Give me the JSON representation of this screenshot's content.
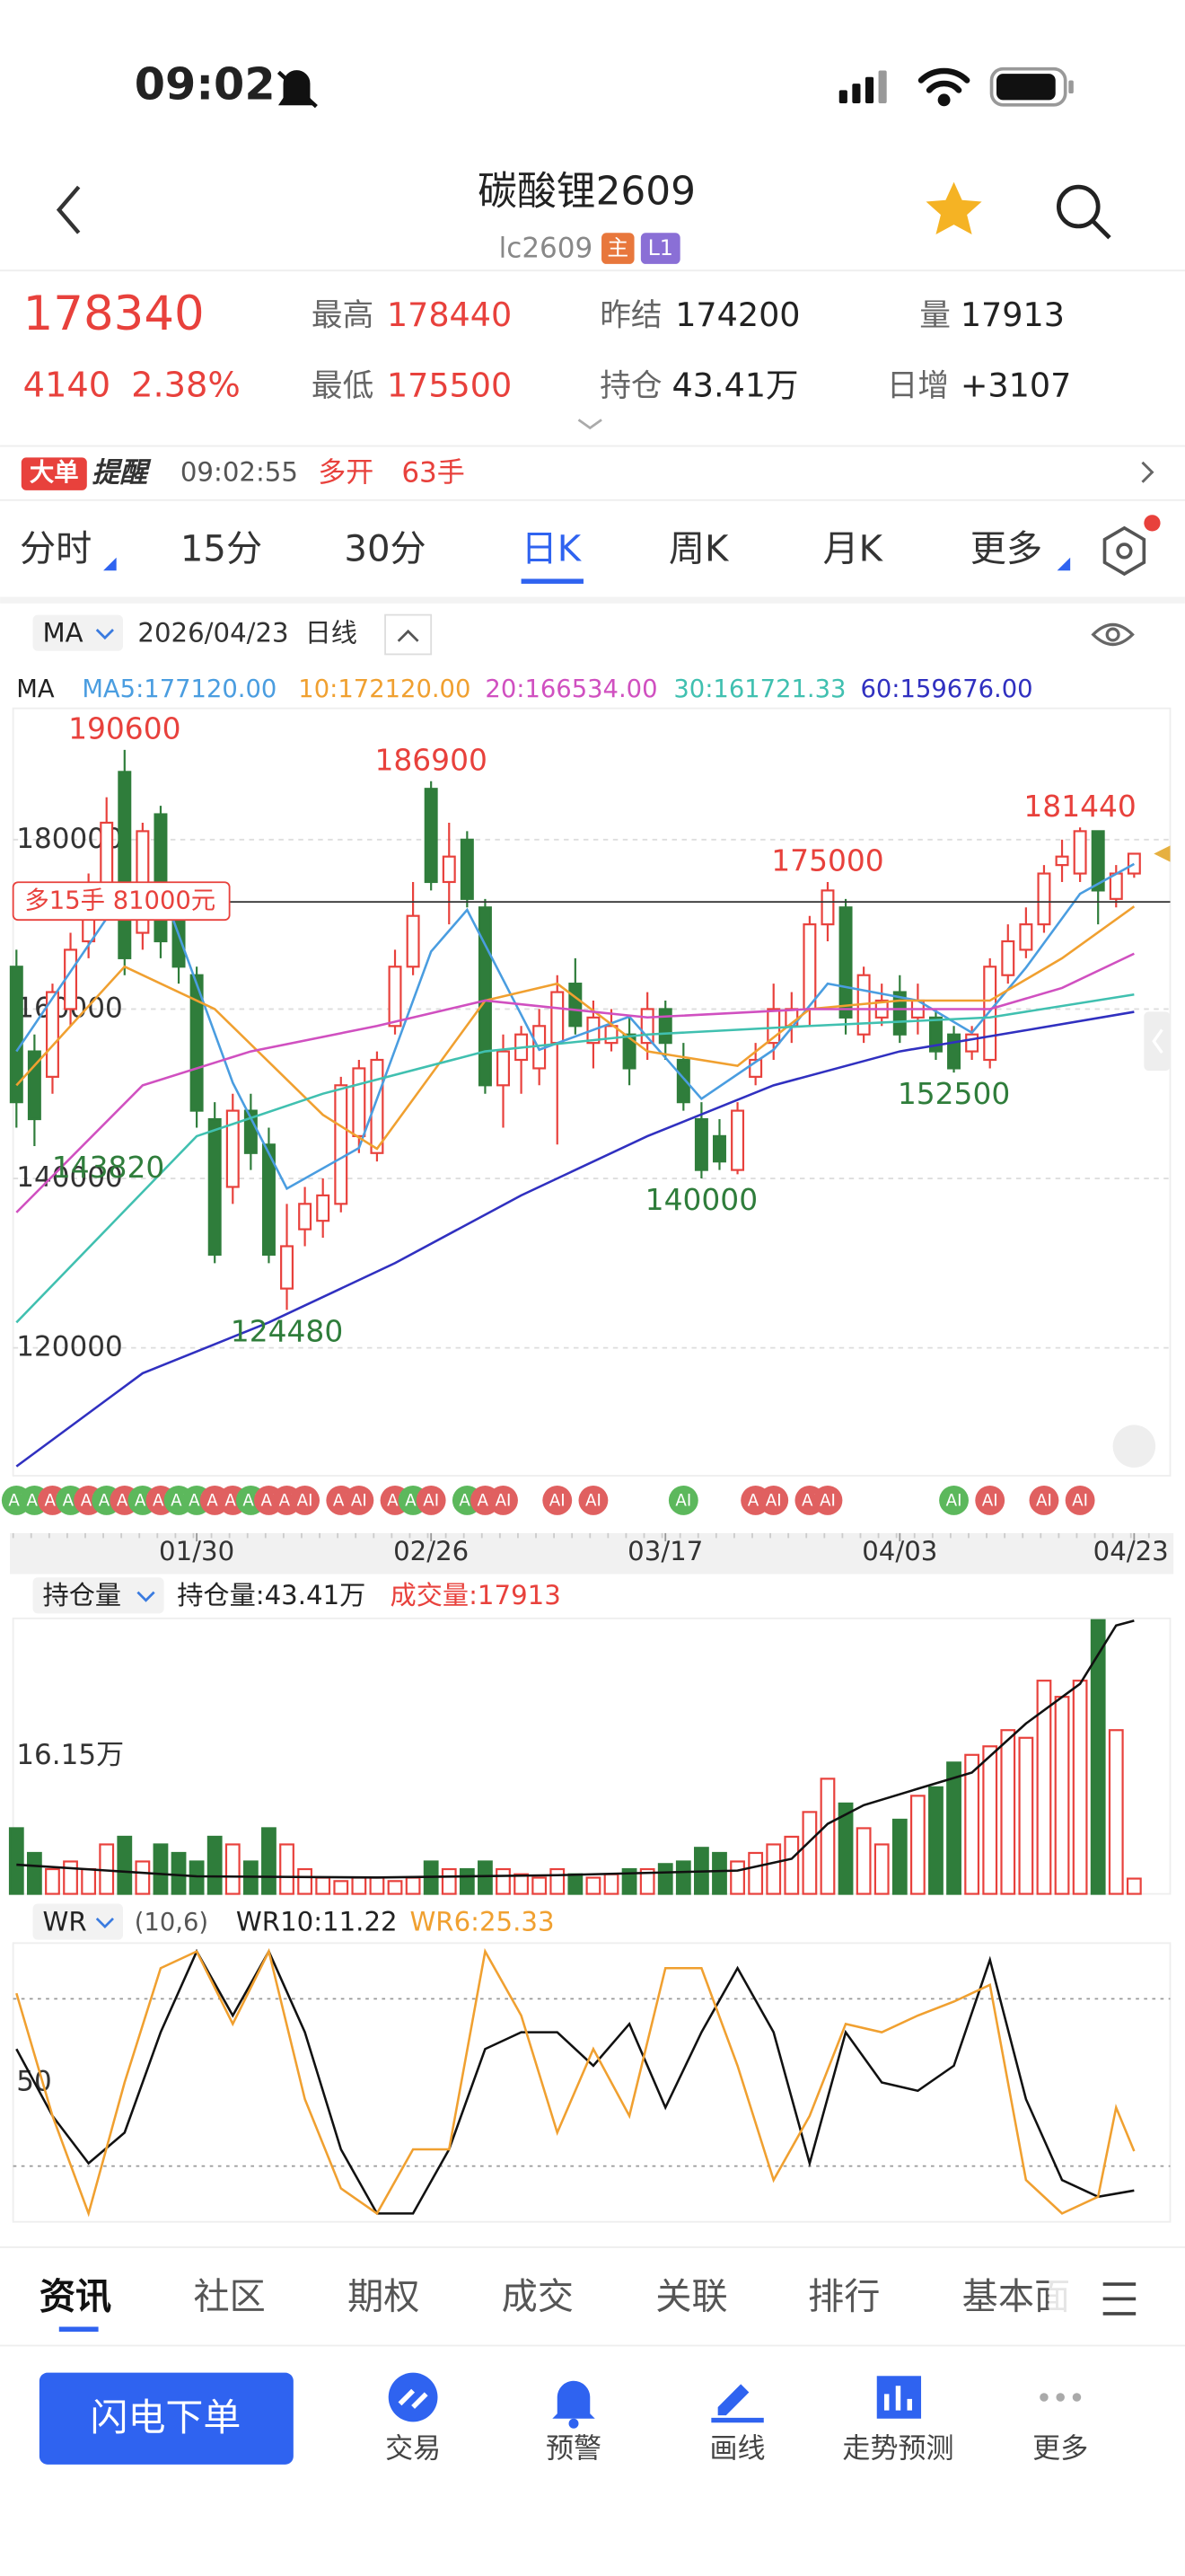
{
  "status_bar": {
    "time": "09:02"
  },
  "header": {
    "title": "碳酸锂2609",
    "code": "lc2609",
    "badges": [
      "主",
      "L1"
    ]
  },
  "quote": {
    "change": 4140,
    "change_pct": "2.38%",
    "high_label": "最高",
    "low_label": "最低",
    "prev_settle_label": "昨结",
    "prev_settle": 174200,
    "oi_label": "持仓",
    "oi": "43.41万",
    "volume_label": "量",
    "volume": 17913,
    "daily_change_label": "日增",
    "daily_change": "+3107"
  },
  "alert": {
    "tag": "大单",
    "title": "提醒",
    "time": "09:02:55",
    "action": "多开",
    "size": "63手"
  },
  "tabs": {
    "items": [
      "分时",
      "15分",
      "30分",
      "日K",
      "周K",
      "月K",
      "更多"
    ],
    "active": 3
  },
  "chart_header": {
    "indicator": "MA",
    "date": "2026/04/23",
    "period": "日线"
  },
  "ma_title": "MA",
  "chart_data": [
    {
      "type": "candlestick",
      "up_color": "#e8413c",
      "down_color": "#2f7d3b",
      "ylim": [
        104900,
        195500
      ],
      "yticks": [
        120000,
        140000,
        160000,
        180000
      ],
      "grid": true,
      "candles": {
        "open": [
          165000,
          155000,
          152000,
          160000,
          168000,
          174000,
          188000,
          169000,
          183000,
          172000,
          164000,
          147000,
          139000,
          148000,
          144000,
          127000,
          134000,
          135000,
          137000,
          145000,
          143000,
          158000,
          165000,
          186000,
          175000,
          180000,
          172000,
          151000,
          154000,
          153000,
          156000,
          163000,
          156000,
          156000,
          157000,
          156000,
          160000,
          154000,
          147000,
          145000,
          141000,
          152000,
          156000,
          158000,
          160000,
          170000,
          172000,
          157000,
          159000,
          162000,
          159000,
          159000,
          157000,
          155000,
          154000,
          164000,
          167000,
          170000,
          177000,
          176000,
          181000,
          173000,
          176000
        ],
        "high": [
          167000,
          157000,
          163000,
          169000,
          176000,
          185000,
          190600,
          182000,
          184000,
          173000,
          165000,
          149000,
          150000,
          150000,
          146000,
          137000,
          139000,
          140000,
          152000,
          154000,
          155000,
          167000,
          175000,
          186900,
          182000,
          181000,
          173000,
          157000,
          158000,
          160000,
          164000,
          166000,
          161000,
          160000,
          159000,
          162000,
          161000,
          156000,
          149000,
          147000,
          149000,
          156000,
          163000,
          162000,
          171000,
          175000,
          173000,
          165000,
          163000,
          164000,
          163000,
          160000,
          158000,
          158000,
          166000,
          170000,
          172000,
          177000,
          180000,
          181440,
          181000,
          177000,
          178440
        ],
        "low": [
          146000,
          143820,
          150000,
          158000,
          166000,
          172000,
          164000,
          167000,
          166000,
          163000,
          146000,
          130000,
          137000,
          141000,
          130000,
          124480,
          132000,
          133000,
          136000,
          143000,
          142000,
          157000,
          164000,
          174000,
          170000,
          172000,
          150000,
          146000,
          150000,
          151000,
          144000,
          157000,
          153000,
          155000,
          151000,
          154000,
          154000,
          148000,
          140000,
          141000,
          140500,
          151000,
          154000,
          156000,
          158000,
          168000,
          157000,
          156000,
          158000,
          156000,
          157000,
          154000,
          152500,
          154000,
          153000,
          163000,
          166000,
          169000,
          175000,
          175000,
          170000,
          172000,
          175500
        ],
        "close": [
          149000,
          147000,
          162000,
          167000,
          174000,
          182000,
          166000,
          181000,
          168000,
          165000,
          148000,
          131000,
          148000,
          143000,
          131000,
          132000,
          137000,
          138000,
          151000,
          153000,
          154000,
          165000,
          171000,
          175000,
          178000,
          173000,
          151000,
          155000,
          157000,
          158000,
          162000,
          158000,
          159000,
          158000,
          153000,
          160000,
          156000,
          149000,
          141000,
          142000,
          148000,
          154000,
          160000,
          160000,
          170000,
          174000,
          159000,
          164000,
          161000,
          157000,
          161000,
          155000,
          153000,
          157000,
          165000,
          168000,
          170000,
          176000,
          178000,
          181000,
          174000,
          176000,
          178340
        ]
      },
      "marked_highs": [
        6,
        23,
        45,
        59
      ],
      "marked_lows": [
        1,
        15,
        38,
        52
      ],
      "series": [
        {
          "label": "MA5:177120.00",
          "color": "#4a9de0",
          "x": [
            0,
            5,
            8,
            12,
            15,
            19,
            23,
            25,
            29,
            34,
            38,
            42,
            45,
            50,
            53,
            56,
            59,
            62
          ],
          "values": [
            155000,
            170700,
            174600,
            151300,
            138800,
            143600,
            166800,
            171700,
            155200,
            159100,
            149400,
            155200,
            163000,
            161000,
            157200,
            164900,
            173600,
            177120
          ]
        },
        {
          "label": "10:172120.00",
          "color": "#f0a030",
          "x": [
            0,
            6,
            11,
            17,
            20,
            26,
            30,
            35,
            40,
            44,
            49,
            54,
            58,
            62
          ],
          "values": [
            151000,
            165000,
            160000,
            147500,
            143500,
            161000,
            163000,
            155000,
            153300,
            160000,
            161000,
            161000,
            166000,
            172120
          ]
        },
        {
          "label": "20:166534.00",
          "color": "#d050c0",
          "x": [
            0,
            7,
            13,
            20,
            26,
            35,
            44,
            54,
            58,
            62
          ],
          "values": [
            136000,
            151000,
            155000,
            158000,
            161000,
            159000,
            160000,
            160000,
            162500,
            166534
          ]
        },
        {
          "label": "30:161721.33",
          "color": "#40c0b0",
          "x": [
            0,
            10,
            17,
            26,
            35,
            44,
            54,
            62
          ],
          "values": [
            123000,
            145000,
            150000,
            155000,
            157000,
            158000,
            159000,
            161721.33
          ]
        },
        {
          "label": "60:159676.00",
          "color": "#3030c0",
          "x": [
            0,
            7,
            14,
            21,
            28,
            35,
            42,
            49,
            56,
            62
          ],
          "values": [
            106000,
            117000,
            123000,
            130000,
            138000,
            145000,
            151000,
            155000,
            157500,
            159676
          ]
        }
      ],
      "position_line": {
        "label": "多15手 81000元",
        "price": 172650
      },
      "ai_badges": {
        "label": "AI",
        "items": [
          {
            "index": 0,
            "color": "#5cb85c"
          },
          {
            "index": 1,
            "color": "#5cb85c"
          },
          {
            "index": 2,
            "color": "#e06060"
          },
          {
            "index": 3,
            "color": "#5cb85c"
          },
          {
            "index": 4,
            "color": "#e06060"
          },
          {
            "index": 5,
            "color": "#5cb85c"
          },
          {
            "index": 6,
            "color": "#e06060"
          },
          {
            "index": 7,
            "color": "#5cb85c"
          },
          {
            "index": 8,
            "color": "#e06060"
          },
          {
            "index": 9,
            "color": "#5cb85c"
          },
          {
            "index": 10,
            "color": "#5cb85c"
          },
          {
            "index": 11,
            "color": "#e06060"
          },
          {
            "index": 12,
            "color": "#e06060"
          },
          {
            "index": 13,
            "color": "#5cb85c"
          },
          {
            "index": 14,
            "color": "#e06060"
          },
          {
            "index": 15,
            "color": "#e06060"
          },
          {
            "index": 16,
            "color": "#e06060"
          },
          {
            "index": 18,
            "color": "#e06060"
          },
          {
            "index": 19,
            "color": "#e06060"
          },
          {
            "index": 21,
            "color": "#e06060"
          },
          {
            "index": 22,
            "color": "#5cb85c"
          },
          {
            "index": 23,
            "color": "#e06060"
          },
          {
            "index": 25,
            "color": "#5cb85c"
          },
          {
            "index": 26,
            "color": "#e06060"
          },
          {
            "index": 27,
            "color": "#e06060"
          },
          {
            "index": 30,
            "color": "#e06060"
          },
          {
            "index": 32,
            "color": "#e06060"
          },
          {
            "index": 37,
            "color": "#5cb85c"
          },
          {
            "index": 41,
            "color": "#e06060"
          },
          {
            "index": 42,
            "color": "#e06060"
          },
          {
            "index": 44,
            "color": "#e06060"
          },
          {
            "index": 45,
            "color": "#e06060"
          },
          {
            "index": 52,
            "color": "#5cb85c"
          },
          {
            "index": 54,
            "color": "#e06060"
          },
          {
            "index": 57,
            "color": "#e06060"
          },
          {
            "index": 59,
            "color": "#e06060"
          }
        ]
      },
      "xticks": [
        {
          "value": 10,
          "label": "01/30"
        },
        {
          "value": 23,
          "label": "02/26"
        },
        {
          "value": 36,
          "label": "03/17"
        },
        {
          "value": 49,
          "label": "04/03"
        },
        {
          "value": 62,
          "label": "04/23"
        }
      ]
    },
    {
      "type": "bar",
      "indicator": "持仓量",
      "ylim": [
        0,
        32.3
      ],
      "yticks": [
        {
          "value": 16.15,
          "label": "16.15万"
        }
      ],
      "y2lim": [
        20,
        43.6
      ],
      "grid": false,
      "series": [
        {
          "label": "成交量:17913",
          "color": "#e8413c",
          "values": [
            7.7,
            4.8,
            2.9,
            3.8,
            2.9,
            5.8,
            6.7,
            3.8,
            5.8,
            4.8,
            3.8,
            6.7,
            5.8,
            3.8,
            7.7,
            5.8,
            2.9,
            1.9,
            1.5,
            1.9,
            1.9,
            1.5,
            1.9,
            3.8,
            2.9,
            2.9,
            3.8,
            2.9,
            2.3,
            1.9,
            2.9,
            2.3,
            1.9,
            2.3,
            2.9,
            2.9,
            3.5,
            3.8,
            5.4,
            4.8,
            3.8,
            4.8,
            5.8,
            6.7,
            9.6,
            13.5,
            10.6,
            7.7,
            5.8,
            8.7,
            11.5,
            12.5,
            15.4,
            16.3,
            17.3,
            19.2,
            18.3,
            25,
            23.1,
            25,
            32.1,
            19.2,
            1.7913
          ]
        },
        {
          "label": "持仓量:43.41万",
          "color": "#111111",
          "axis": "y2",
          "x": [
            0,
            10,
            20,
            30,
            40,
            43,
            45,
            47,
            50,
            53,
            56,
            59,
            61,
            62
          ],
          "values": [
            22.5,
            21.5,
            21.4,
            21.6,
            22,
            23,
            26,
            27.6,
            29,
            30.4,
            34.6,
            38,
            43,
            43.41
          ]
        }
      ]
    },
    {
      "type": "line",
      "indicator": "WR",
      "params": "(10,6)",
      "ylim": [
        0,
        100
      ],
      "yticks": [
        50
      ],
      "levels": [
        20,
        80
      ],
      "series": [
        {
          "label": "WR10:11.22",
          "color": "#111111",
          "x": [
            0,
            2,
            4,
            6,
            8,
            10,
            12,
            14,
            16,
            18,
            20,
            22,
            24,
            26,
            28,
            30,
            32,
            34,
            36,
            38,
            40,
            42,
            44,
            46,
            48,
            50,
            52,
            54,
            56,
            58,
            60,
            62
          ],
          "values": [
            62,
            38,
            21,
            32,
            68,
            97,
            74,
            97,
            68,
            26,
            3,
            3,
            26,
            62,
            68,
            68,
            56,
            71,
            41,
            68,
            91,
            68,
            21,
            68,
            50,
            47,
            56,
            94,
            44,
            15,
            9,
            11.22
          ]
        },
        {
          "label": "WR6:25.33",
          "color": "#f0a030",
          "x": [
            0,
            2,
            4,
            6,
            8,
            10,
            12,
            14,
            16,
            18,
            20,
            22,
            24,
            26,
            28,
            30,
            32,
            34,
            36,
            38,
            40,
            42,
            44,
            46,
            48,
            50,
            52,
            54,
            56,
            58,
            60,
            61,
            62
          ],
          "values": [
            82,
            38,
            3,
            50,
            91,
            97,
            71,
            97,
            44,
            12,
            3,
            26,
            26,
            97,
            74,
            32,
            62,
            38,
            91,
            91,
            56,
            15,
            38,
            71,
            68,
            74,
            79,
            85,
            15,
            3,
            9,
            41,
            25.33
          ]
        }
      ]
    }
  ],
  "bottom_tabs": {
    "items": [
      "资讯",
      "社区",
      "期权",
      "成交",
      "关联",
      "排行",
      "基本面"
    ],
    "active": 0
  },
  "bottom_nav": {
    "primary": "闪电下单",
    "items": [
      "交易",
      "预警",
      "画线",
      "走势预测",
      "更多"
    ]
  }
}
